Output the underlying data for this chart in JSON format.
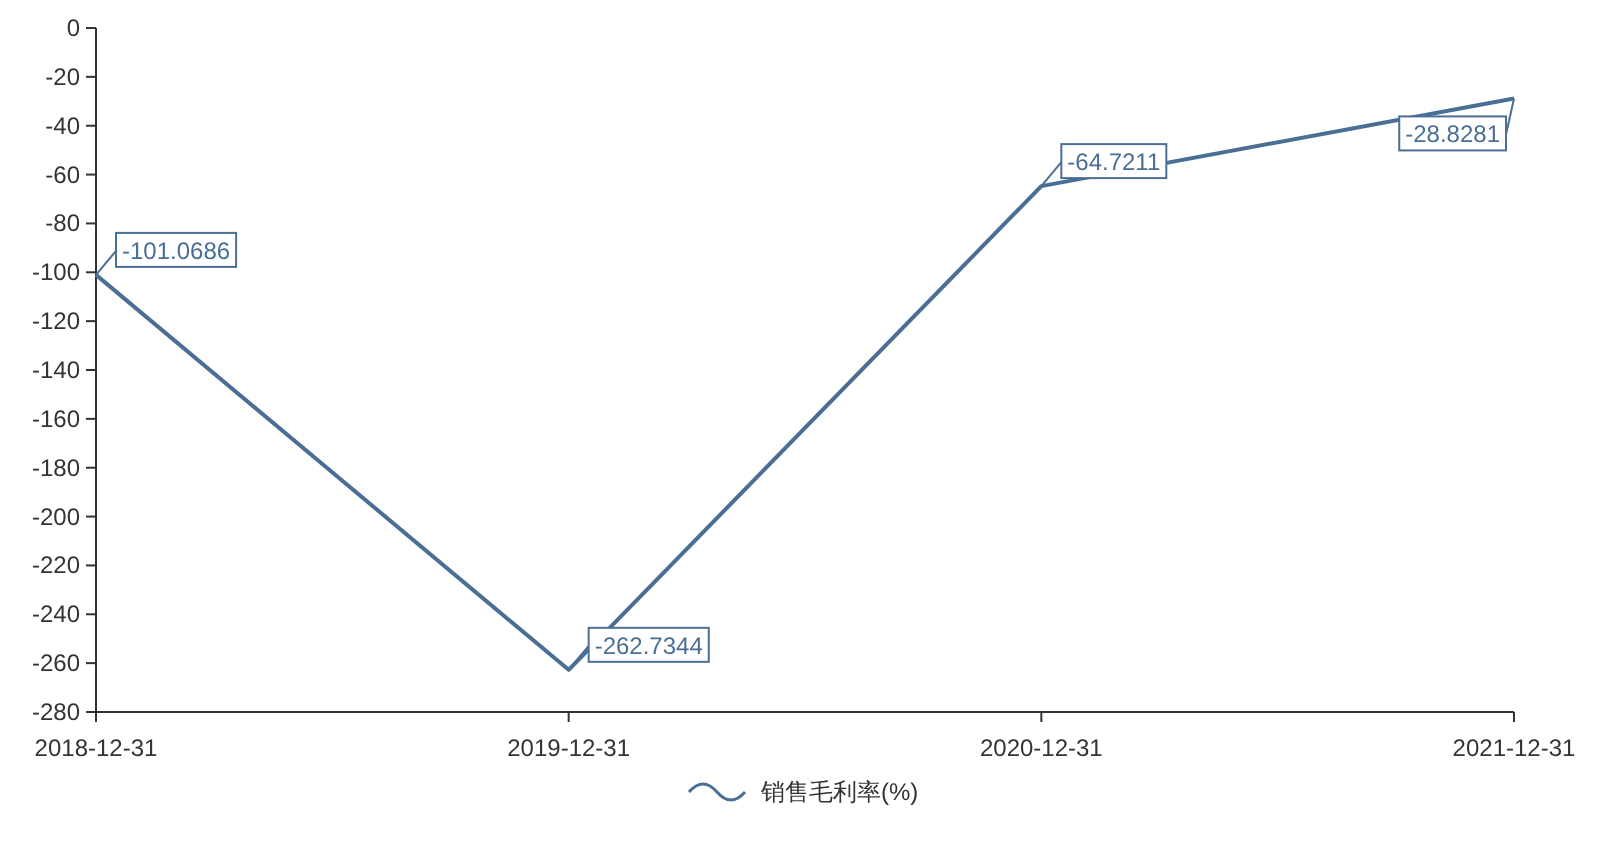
{
  "chart_data": {
    "type": "line",
    "categories": [
      "2018-12-31",
      "2019-12-31",
      "2020-12-31",
      "2021-12-31"
    ],
    "series": [
      {
        "name": "销售毛利率(%)",
        "color": "#4a6f95",
        "values": [
          -101.0686,
          -262.7344,
          -64.7211,
          -28.8281
        ]
      }
    ],
    "ylim": [
      -280,
      0
    ],
    "yticks": [
      0,
      -20,
      -40,
      -60,
      -80,
      -100,
      -120,
      -140,
      -160,
      -180,
      -200,
      -220,
      -240,
      -260,
      -280
    ],
    "data_labels": true,
    "legend": "bottom"
  }
}
